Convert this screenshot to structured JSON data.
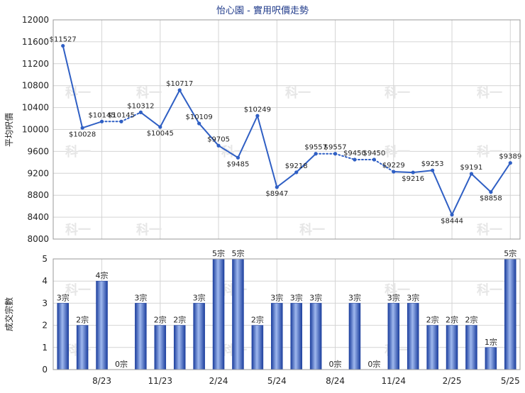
{
  "chart_data": [
    {
      "type": "line",
      "title": "怡心園 - 實用呎價走勢",
      "ylabel": "平均呎價",
      "ylim": [
        8000,
        12000
      ],
      "yticks": [
        8000,
        8400,
        8800,
        9200,
        9600,
        10000,
        10400,
        10800,
        11200,
        11600,
        12000
      ],
      "xtick_labels": [
        "8/23",
        "11/23",
        "2/24",
        "5/24",
        "8/24",
        "11/24",
        "2/25",
        "5/25"
      ],
      "x": [
        "6/23",
        "7/23",
        "8/23",
        "9/23",
        "10/23",
        "11/23",
        "12/23",
        "1/24",
        "2/24",
        "3/24",
        "4/24",
        "5/24",
        "6/24",
        "7/24",
        "8/24",
        "9/24",
        "10/24",
        "11/24",
        "12/24",
        "1/25",
        "2/25",
        "3/25",
        "4/25",
        "5/25"
      ],
      "values": [
        11527,
        10028,
        10145,
        10145,
        10312,
        10045,
        10717,
        10109,
        9705,
        9485,
        10249,
        8947,
        9218,
        9557,
        9557,
        9450,
        9450,
        9229,
        9216,
        9253,
        8444,
        9191,
        8858,
        9389
      ],
      "value_labels": [
        "$11527",
        "$10028",
        "$10145",
        "$10145",
        "$10312",
        "$10045",
        "$10717",
        "$10109",
        "$9705",
        "$9485",
        "$10249",
        "$8947",
        "$9218",
        "$9557",
        "$9557",
        "$9450",
        "$9450",
        "$9229",
        "$9216",
        "$9253",
        "$8444",
        "$9191",
        "$8858",
        "$9389"
      ],
      "interpolated": [
        false,
        false,
        false,
        true,
        false,
        false,
        false,
        false,
        false,
        false,
        false,
        false,
        false,
        false,
        true,
        false,
        true,
        false,
        false,
        false,
        false,
        false,
        false,
        false
      ],
      "color": "#2f5fc4",
      "grid": true
    },
    {
      "type": "bar",
      "ylabel": "成交宗數",
      "ylim": [
        0,
        5
      ],
      "yticks": [
        0,
        1,
        2,
        3,
        4,
        5
      ],
      "categories": [
        "6/23",
        "7/23",
        "8/23",
        "9/23",
        "10/23",
        "11/23",
        "12/23",
        "1/24",
        "2/24",
        "3/24",
        "4/24",
        "5/24",
        "6/24",
        "7/24",
        "8/24",
        "9/24",
        "10/24",
        "11/24",
        "12/24",
        "1/25",
        "2/25",
        "3/25",
        "4/25",
        "5/25"
      ],
      "xtick_labels": [
        "8/23",
        "11/23",
        "2/24",
        "5/24",
        "8/24",
        "11/24",
        "2/25",
        "5/25"
      ],
      "values": [
        3,
        2,
        4,
        0,
        3,
        2,
        2,
        3,
        5,
        5,
        2,
        3,
        3,
        3,
        0,
        3,
        0,
        3,
        3,
        2,
        2,
        2,
        1,
        5
      ],
      "value_labels": [
        "3宗",
        "2宗",
        "4宗",
        "0宗",
        "3宗",
        "2宗",
        "2宗",
        "3宗",
        "5宗",
        "5宗",
        "2宗",
        "3宗",
        "3宗",
        "3宗",
        "0宗",
        "3宗",
        "0宗",
        "3宗",
        "3宗",
        "2宗",
        "2宗",
        "2宗",
        "1宗",
        "5宗"
      ],
      "color": "#2f5fc4",
      "grid": true
    }
  ],
  "watermark": "科一"
}
